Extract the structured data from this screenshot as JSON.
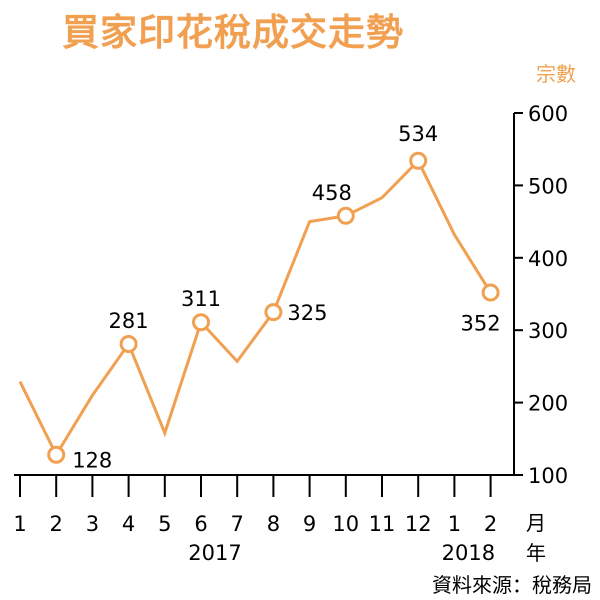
{
  "title": "買家印花稅成交走勢",
  "unit_label": "宗數",
  "source": "資料來源：稅務局",
  "x_unit_month": "月",
  "x_unit_year": "年",
  "colors": {
    "accent": "#f0a050",
    "axis": "#000000"
  },
  "chart_data": {
    "type": "line",
    "title": "買家印花稅成交走勢",
    "ylabel": "宗數",
    "xlabel": "",
    "ylim": [
      100,
      600
    ],
    "y_ticks": [
      100,
      200,
      300,
      400,
      500,
      600
    ],
    "categories": [
      "1",
      "2",
      "3",
      "4",
      "5",
      "6",
      "7",
      "8",
      "9",
      "10",
      "11",
      "12",
      "1",
      "2"
    ],
    "year_labels": [
      {
        "label": "2017",
        "category_index": 5
      },
      {
        "label": "2018",
        "category_index": 12
      }
    ],
    "y_axis_position": "right",
    "grid": false,
    "series": [
      {
        "values": [
          229,
          128,
          210,
          281,
          158,
          311,
          257,
          325,
          450,
          458,
          483,
          534,
          432,
          352
        ],
        "markers": [
          1,
          3,
          5,
          7,
          9,
          11,
          13
        ],
        "point_labels": [
          {
            "index": 1,
            "text": "128"
          },
          {
            "index": 3,
            "text": "281"
          },
          {
            "index": 5,
            "text": "311"
          },
          {
            "index": 7,
            "text": "325"
          },
          {
            "index": 9,
            "text": "458"
          },
          {
            "index": 11,
            "text": "534"
          },
          {
            "index": 13,
            "text": "352"
          }
        ]
      }
    ]
  }
}
